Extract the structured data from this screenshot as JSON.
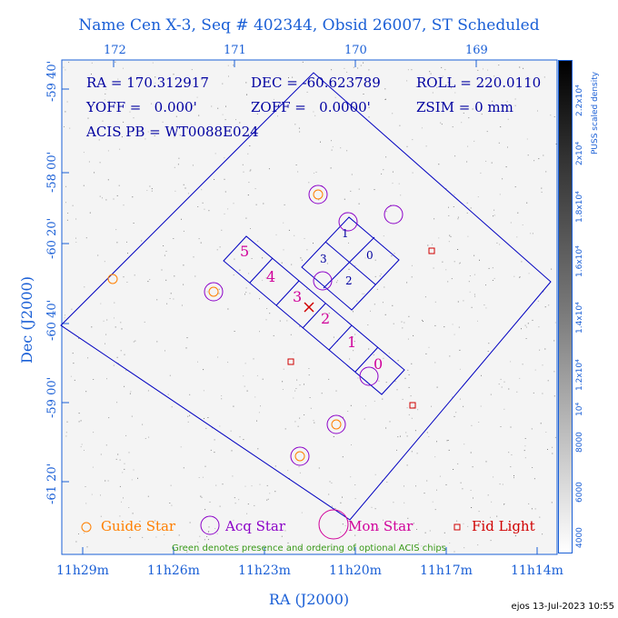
{
  "title": "Name Cen X-3, Seq # 402344, Obsid 26007, ST Scheduled",
  "top_ticks": [
    "172",
    "171",
    "170",
    "169"
  ],
  "left_ticks": [
    "-59 40'",
    "-58 00'",
    "-60 20'",
    "-60 40'",
    "-59 00'",
    "-59 00'",
    "-61 20'"
  ],
  "bottom_ticks": [
    "11h29m",
    "11h26m",
    "11h23m",
    "11h20m",
    "11h17m",
    "11h14m"
  ],
  "x_axis_label": "RA (J2000)",
  "y_axis_label": "Dec (J2000)",
  "info": {
    "ra": "RA = 170.312917",
    "dec": "DEC = -60.623789",
    "roll": "ROLL = 220.0110",
    "yoff": "YOFF =   0.000'",
    "zoff": "ZOFF =   0.0000'",
    "zsim": "ZSIM = 0 mm",
    "acis": "ACIS PB = WT0088E024"
  },
  "chips_i": [
    "1",
    "3",
    "0",
    "2"
  ],
  "chips_s": [
    "5",
    "4",
    "3",
    "2",
    "1",
    "0"
  ],
  "legend": {
    "guide": "Guide Star",
    "acq": "Acq Star",
    "mon": "Mon Star",
    "fid": "Fid Light"
  },
  "note": "Green denotes presence and ordering of optional ACIS chips",
  "colorbar_ticks": [
    "2.2x10⁴",
    "2x10⁴",
    "1.8x10⁴",
    "1.6x10⁴",
    "1.4x10⁴",
    "1.2x10⁴",
    "10⁴",
    "8000",
    "6000",
    "4000"
  ],
  "colorbar_label": "PUSS scaled density",
  "footer": "ejos 13-Jul-2023 10:55",
  "colors": {
    "axis": "#1a5fd6",
    "fov": "#0000c0",
    "guide": "#ff7f00",
    "acq": "#8b00c8",
    "mon": "#d0009a",
    "fid": "#d00000",
    "optional": "#3a9a1a"
  }
}
